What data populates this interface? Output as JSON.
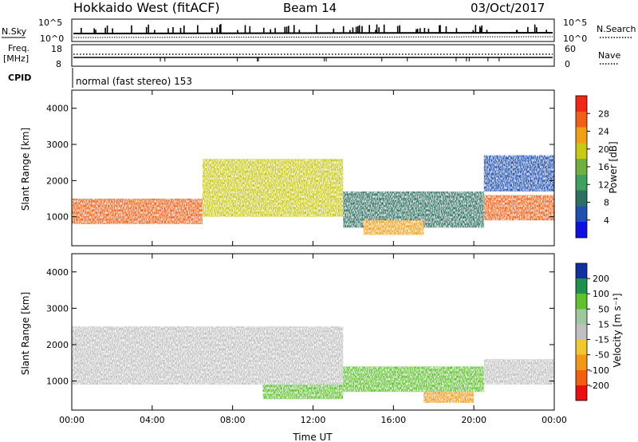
{
  "header": {
    "title": "Hokkaido West (fitACF)",
    "beam": "Beam 14",
    "date": "03/Oct/2017"
  },
  "top_panels": {
    "nsky_label": "N.Sky",
    "nsearch_label": "N.Search",
    "noise_tick_high": "10^5",
    "noise_tick_low": "10^0",
    "freq_label_line1": "Freq.",
    "freq_label_line2": "[MHz]",
    "freq_tick_high": "18",
    "freq_tick_low": "8",
    "nave_label": "Nave",
    "nave_tick_high": "60",
    "nave_tick_low": "0",
    "cpid_label": "CPID",
    "cpid_text": "normal (fast stereo) 153"
  },
  "chart_data": [
    {
      "type": "heatmap",
      "parameter": "power",
      "ylabel": "Slant Range [km]",
      "ylim": [
        200,
        4500
      ],
      "yticks": [
        "1000",
        "2000",
        "3000",
        "4000"
      ],
      "colorbar_label": "Power [dB]",
      "colorbar_ticks": [
        "4",
        "8",
        "12",
        "16",
        "20",
        "24",
        "28"
      ],
      "colorbar_range": [
        0,
        32
      ],
      "colorbar_colors": [
        "#1010e0",
        "#2050b0",
        "#307060",
        "#40a060",
        "#70b040",
        "#c8c818",
        "#f0a018",
        "#f06018",
        "#f02818"
      ],
      "regions": [
        {
          "x": [
            0,
            6.5
          ],
          "y": [
            800,
            1500
          ],
          "value": 26
        },
        {
          "x": [
            6.5,
            13.5
          ],
          "y": [
            1000,
            2600
          ],
          "value": 18
        },
        {
          "x": [
            13.5,
            20.5
          ],
          "y": [
            700,
            1700
          ],
          "value": 10
        },
        {
          "x": [
            14.5,
            17.5
          ],
          "y": [
            500,
            900
          ],
          "value": 24
        },
        {
          "x": [
            20.5,
            24
          ],
          "y": [
            900,
            1600
          ],
          "value": 26
        },
        {
          "x": [
            20.5,
            24
          ],
          "y": [
            1700,
            2700
          ],
          "value": 6
        }
      ]
    },
    {
      "type": "heatmap",
      "parameter": "velocity",
      "ylabel": "Slant Range [km]",
      "xlabel": "Time UT",
      "ylim": [
        200,
        4500
      ],
      "yticks": [
        "1000",
        "2000",
        "3000",
        "4000"
      ],
      "xticks": [
        "00:00",
        "04:00",
        "08:00",
        "12:00",
        "16:00",
        "20:00",
        "00:00"
      ],
      "xlim": [
        0,
        24
      ],
      "colorbar_label": "Velocity [m s⁻¹]",
      "colorbar_ticks": [
        "-200",
        "-100",
        "-50",
        "-15",
        "15",
        "50",
        "100",
        "200"
      ],
      "colorbar_colors": [
        "#e81010",
        "#f06010",
        "#f09818",
        "#f0c830",
        "#c0c0c0",
        "#a0c8a0",
        "#60c030",
        "#209050",
        "#1030a0"
      ],
      "regions": [
        {
          "x": [
            0,
            13.5
          ],
          "y": [
            900,
            2500
          ],
          "value": 0
        },
        {
          "x": [
            9.5,
            13.5
          ],
          "y": [
            500,
            900
          ],
          "value": 60
        },
        {
          "x": [
            13.5,
            20.5
          ],
          "y": [
            700,
            1400
          ],
          "value": 60
        },
        {
          "x": [
            17.5,
            20
          ],
          "y": [
            400,
            700
          ],
          "value": -60
        },
        {
          "x": [
            20.5,
            24
          ],
          "y": [
            900,
            1600
          ],
          "value": 0
        }
      ]
    }
  ]
}
